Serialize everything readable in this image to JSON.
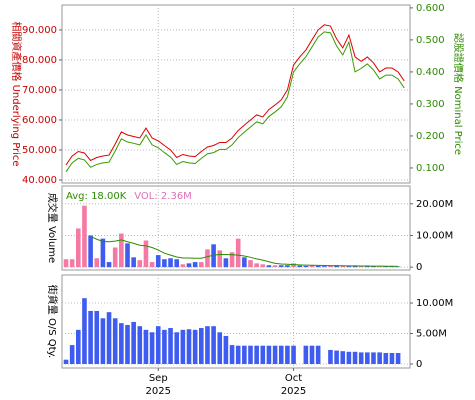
{
  "chart_data": [
    {
      "type": "line",
      "ylabel": "相關資產價格 Underlying Price",
      "ycolor": "#cc0000",
      "y2label": "認股證價格 Nominal Price",
      "y2color": "#2e8b00",
      "ylim": [
        39,
        98.3
      ],
      "yticks": [
        {
          "value": 40,
          "label": "40.000"
        },
        {
          "value": 50,
          "label": "50.000"
        },
        {
          "value": 60,
          "label": "60.000"
        },
        {
          "value": 70,
          "label": "70.000"
        },
        {
          "value": 80,
          "label": "80.000"
        },
        {
          "value": 90,
          "label": "90.000"
        }
      ],
      "y2lim": [
        0.053,
        0.609
      ],
      "y2ticks": [
        {
          "value": 0.1,
          "label": "0.100"
        },
        {
          "value": 0.2,
          "label": "0.200"
        },
        {
          "value": 0.3,
          "label": "0.300"
        },
        {
          "value": 0.4,
          "label": "0.400"
        },
        {
          "value": 0.5,
          "label": "0.500"
        },
        {
          "value": 0.6,
          "label": "0.600"
        }
      ],
      "grid": true,
      "series": [
        {
          "color": "#dd0000",
          "values": [
            45,
            48,
            49.5,
            49,
            46.5,
            47.5,
            48,
            48.3,
            52,
            56,
            55,
            54.5,
            54,
            57.3,
            54,
            53,
            51.5,
            50,
            47.5,
            48.5,
            48,
            47.8,
            49.5,
            51,
            51.5,
            52.5,
            52.5,
            54,
            56.5,
            58.3,
            60,
            61.7,
            61,
            63.5,
            65,
            66.7,
            70,
            78.3,
            81,
            83.3,
            86.7,
            90,
            91.7,
            91.3,
            87,
            84,
            88.3,
            81,
            79.5,
            81,
            79,
            76,
            77.3,
            77.3,
            76,
            73
          ]
        },
        {
          "color": "#3a9a00",
          "axis": "y2",
          "values": [
            0.088,
            0.116,
            0.13,
            0.125,
            0.102,
            0.111,
            0.116,
            0.118,
            0.153,
            0.191,
            0.181,
            0.177,
            0.172,
            0.203,
            0.172,
            0.163,
            0.148,
            0.134,
            0.111,
            0.12,
            0.116,
            0.114,
            0.13,
            0.144,
            0.148,
            0.158,
            0.158,
            0.172,
            0.195,
            0.212,
            0.228,
            0.244,
            0.238,
            0.261,
            0.275,
            0.291,
            0.322,
            0.4,
            0.425,
            0.447,
            0.478,
            0.509,
            0.525,
            0.522,
            0.481,
            0.453,
            0.493,
            0.4,
            0.411,
            0.425,
            0.406,
            0.378,
            0.39,
            0.39,
            0.378,
            0.35
          ]
        }
      ]
    },
    {
      "type": "bar",
      "ylabel": "成交量 Volume",
      "ycolor": "#000000",
      "yaxis_side": "right",
      "annotations": [
        {
          "text": "Avg: 18.00K",
          "color": "#2e8b00"
        },
        {
          "text": "VOL: 2.36M",
          "color": "#e070b8"
        }
      ],
      "ylim": [
        -900000,
        25600000
      ],
      "yticks": [
        0,
        {
          "value": 10000000,
          "label": "10.00M"
        },
        {
          "value": 20000000,
          "label": "20.00M"
        }
      ],
      "grid": true,
      "series": [
        {
          "type": "bar",
          "colors": [
            "#f47aa5",
            "#f47aa5",
            "#f47aa5",
            "#f47aa5",
            "#3f5cf0",
            "#f47aa5",
            "#3f5cf0",
            "#3f5cf0",
            "#f47aa5",
            "#f47aa5",
            "#3f5cf0",
            "#3f5cf0",
            "#f47aa5",
            "#f47aa5",
            "#f47aa5",
            "#3f5cf0",
            "#3f5cf0",
            "#3f5cf0",
            "#3f5cf0",
            "#f47aa5",
            "#3f5cf0",
            "#3f5cf0",
            "#f47aa5",
            "#f47aa5",
            "#3f5cf0",
            "#f47aa5",
            "#3f5cf0",
            "#f47aa5",
            "#f47aa5",
            "#3f5cf0",
            "#f47aa5",
            "#f47aa5",
            "#f47aa5",
            "#3f5cf0",
            "#f47aa5",
            "#3f5cf0",
            "#3f5cf0",
            "#f47aa5",
            "#3f5cf0",
            "#3f5cf0",
            "#f47aa5",
            "#3f5cf0",
            "#3f5cf0",
            "#f47aa5",
            "#3f5cf0",
            "#f47aa5",
            "#3f5cf0",
            "#3f5cf0",
            "#f47aa5",
            "#3f5cf0",
            "#3f5cf0",
            "#f47aa5",
            "#3f5cf0",
            "#3f5cf0",
            "#3f5cf0",
            "#3f5cf0"
          ],
          "values": [
            2500000,
            2500000,
            12200000,
            19400000,
            10000000,
            2800000,
            9000000,
            1600000,
            6200000,
            10600000,
            7500000,
            3100000,
            2200000,
            8400000,
            1600000,
            3800000,
            2500000,
            2800000,
            2500000,
            900000,
            1200000,
            1600000,
            1600000,
            5600000,
            7200000,
            5300000,
            2800000,
            4700000,
            9000000,
            3100000,
            2200000,
            1200000,
            900000,
            600000,
            600000,
            600000,
            600000,
            1200000,
            500000,
            400000,
            500000,
            400000,
            300000,
            400000,
            600000,
            400000,
            300000,
            400000,
            300000,
            300000,
            300000,
            200000,
            200000,
            200000,
            200000,
            null
          ]
        },
        {
          "type": "line",
          "color": "#2e8b00",
          "values": [
            null,
            null,
            null,
            null,
            9700000,
            8800000,
            8100000,
            8000000,
            8200000,
            8600000,
            8000000,
            7500000,
            6900000,
            6700000,
            6200000,
            5400000,
            4400000,
            3800000,
            3200000,
            2900000,
            2900000,
            2800000,
            2800000,
            3300000,
            3800000,
            4000000,
            4000000,
            3900000,
            3800000,
            3500000,
            3100000,
            2600000,
            2200000,
            1700000,
            1200000,
            1000000,
            900000,
            800000,
            700000,
            650000,
            600000,
            550000,
            500000,
            480000,
            460000,
            450000,
            420000,
            400000,
            380000,
            360000,
            340000,
            320000,
            300000,
            280000,
            260000,
            null
          ]
        }
      ]
    },
    {
      "type": "bar",
      "ylabel": "街貨量 O/S Qty.",
      "ycolor": "#000000",
      "yaxis_side": "right",
      "categories": [
        null,
        null,
        null,
        null,
        null,
        null,
        null,
        null,
        null,
        null,
        null,
        null,
        null,
        null,
        null,
        "Sep 2025",
        null,
        null,
        null,
        null,
        null,
        null,
        null,
        null,
        null,
        null,
        null,
        null,
        null,
        null,
        null,
        null,
        null,
        null,
        null,
        null,
        null,
        "Oct 2025",
        null,
        null,
        null,
        null,
        null,
        null,
        null,
        null,
        null,
        null,
        null,
        null,
        null,
        null,
        null,
        null,
        null,
        null
      ],
      "ylim": [
        -660000,
        14600000
      ],
      "yticks": [
        0,
        {
          "value": 5000000,
          "label": "5.00M"
        },
        {
          "value": 10000000,
          "label": "10.00M"
        }
      ],
      "grid": true,
      "series": [
        {
          "type": "bar",
          "color": "#3f5cf0",
          "values": [
            700000,
            3100000,
            5600000,
            10800000,
            8700000,
            8700000,
            7500000,
            8500000,
            7500000,
            6700000,
            6400000,
            6900000,
            6200000,
            5600000,
            5200000,
            6200000,
            5600000,
            5900000,
            5200000,
            5600000,
            5700000,
            5600000,
            5900000,
            6200000,
            6200000,
            5200000,
            4600000,
            3100000,
            3000000,
            3000000,
            3000000,
            3000000,
            3000000,
            3000000,
            3000000,
            3000000,
            3000000,
            3000000,
            null,
            3000000,
            3000000,
            3000000,
            null,
            2300000,
            2200000,
            2100000,
            2000000,
            2000000,
            1900000,
            1900000,
            1900000,
            1900000,
            1800000,
            1800000,
            1800000,
            null
          ]
        }
      ]
    }
  ]
}
